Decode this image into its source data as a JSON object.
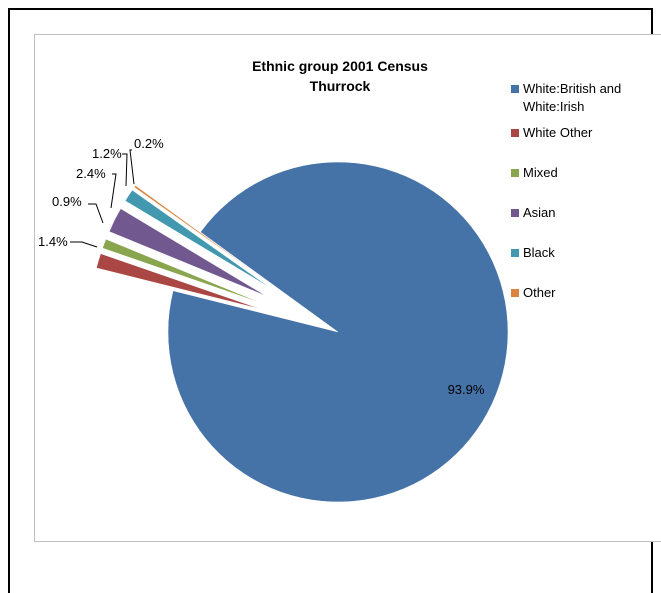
{
  "chart_data": {
    "type": "pie",
    "exploded": true,
    "title_lines": [
      "Ethnic group 2001 Census",
      "Thurrock"
    ],
    "categories": [
      "White:British and White:Irish",
      "White Other",
      "Mixed",
      "Asian",
      "Black",
      "Other"
    ],
    "values": [
      93.9,
      1.4,
      0.9,
      2.4,
      1.2,
      0.2
    ],
    "data_labels": [
      "93.9%",
      "1.4%",
      "0.9%",
      "2.4%",
      "1.2%",
      "0.2%"
    ],
    "legend_lines": [
      [
        "White:British and",
        "White:Irish"
      ],
      [
        "White Other"
      ],
      [
        "Mixed"
      ],
      [
        "Asian"
      ],
      [
        "Black"
      ],
      [
        "Other"
      ]
    ],
    "colors": [
      "#4572a7",
      "#aa4643",
      "#89a54e",
      "#71588f",
      "#4198af",
      "#db843d"
    ],
    "legend_position": "right"
  }
}
